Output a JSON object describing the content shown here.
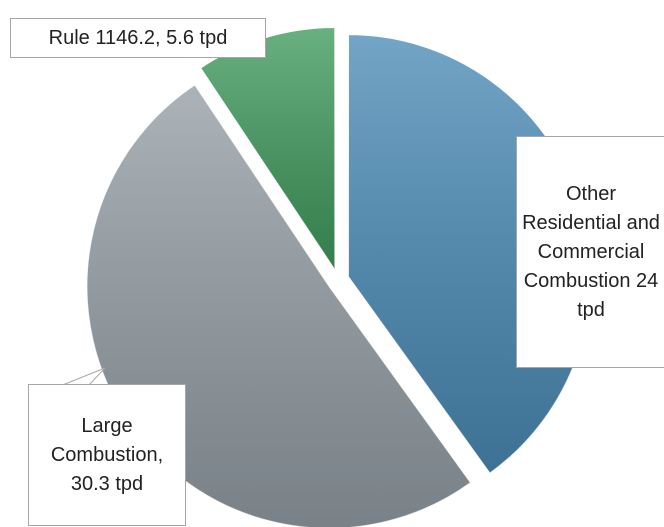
{
  "chart_data": {
    "type": "pie",
    "value_labels": [
      "Other Residential and Commercial Combustion 24 tpd",
      "Large Combustion, 30.3 tpd",
      "Rule 1146.2, 5.6 tpd"
    ],
    "values": [
      24,
      30.3,
      5.6
    ],
    "colors": [
      "#4a8bb6",
      "#949ea6",
      "#3f9a5c"
    ]
  }
}
